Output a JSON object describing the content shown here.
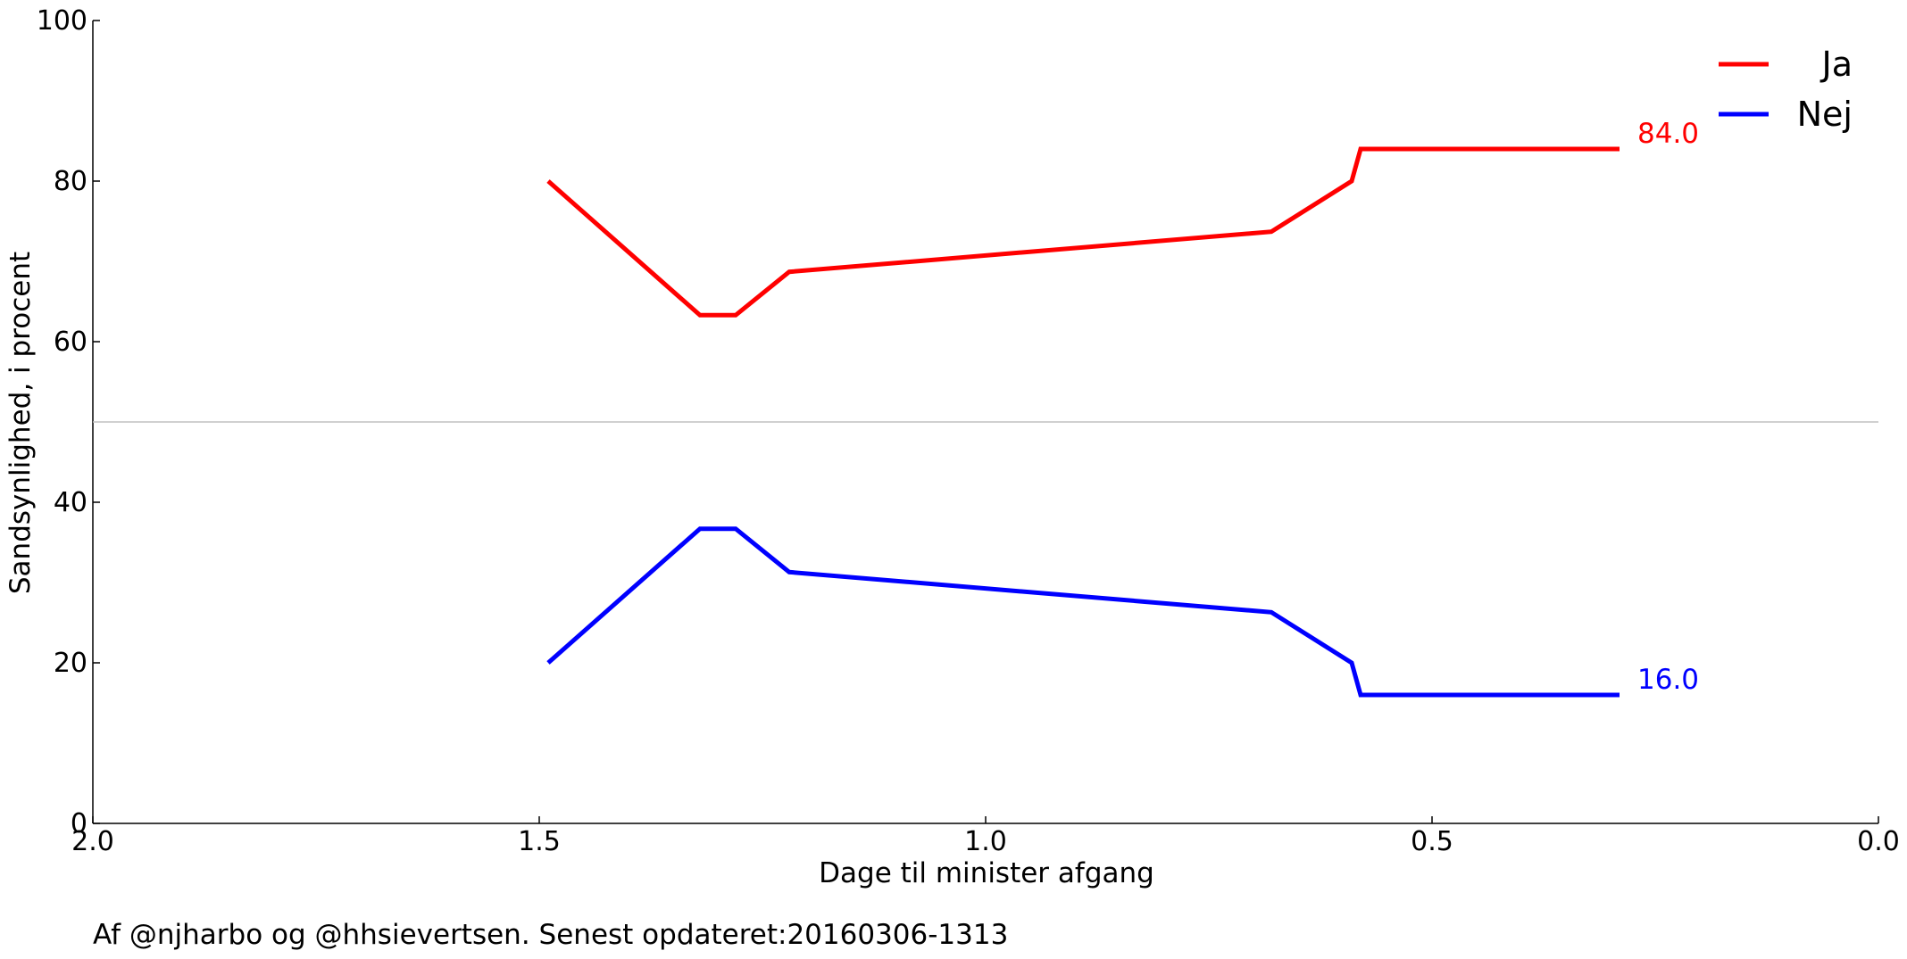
{
  "chart_data": {
    "type": "line",
    "xlabel": "Dage til minister afgang",
    "ylabel": "Sandsynlighed, i procent",
    "xlim": [
      2.0,
      0.0
    ],
    "ylim": [
      0,
      100
    ],
    "x_ticks": [
      "2.0",
      "1.5",
      "1.0",
      "0.5",
      "0.0"
    ],
    "y_ticks": [
      "0",
      "20",
      "40",
      "60",
      "80",
      "100"
    ],
    "reference_line_y": 50,
    "grid": false,
    "legend_position": "top-right",
    "series": [
      {
        "name": "Ja",
        "color": "#ff0000",
        "x": [
          1.49,
          1.32,
          1.28,
          1.22,
          0.68,
          0.59,
          0.58,
          0.29
        ],
        "y": [
          80.0,
          63.3,
          63.3,
          68.7,
          73.7,
          80.0,
          84.0,
          84.0
        ],
        "end_label": "84.0"
      },
      {
        "name": "Nej",
        "color": "#0000ff",
        "x": [
          1.49,
          1.32,
          1.28,
          1.22,
          0.68,
          0.59,
          0.58,
          0.29
        ],
        "y": [
          20.0,
          36.7,
          36.7,
          31.3,
          26.3,
          20.0,
          16.0,
          16.0
        ],
        "end_label": "16.0"
      }
    ]
  },
  "footer": "Af @njharbo og @hhsievertsen. Senest opdateret:20160306-1313"
}
